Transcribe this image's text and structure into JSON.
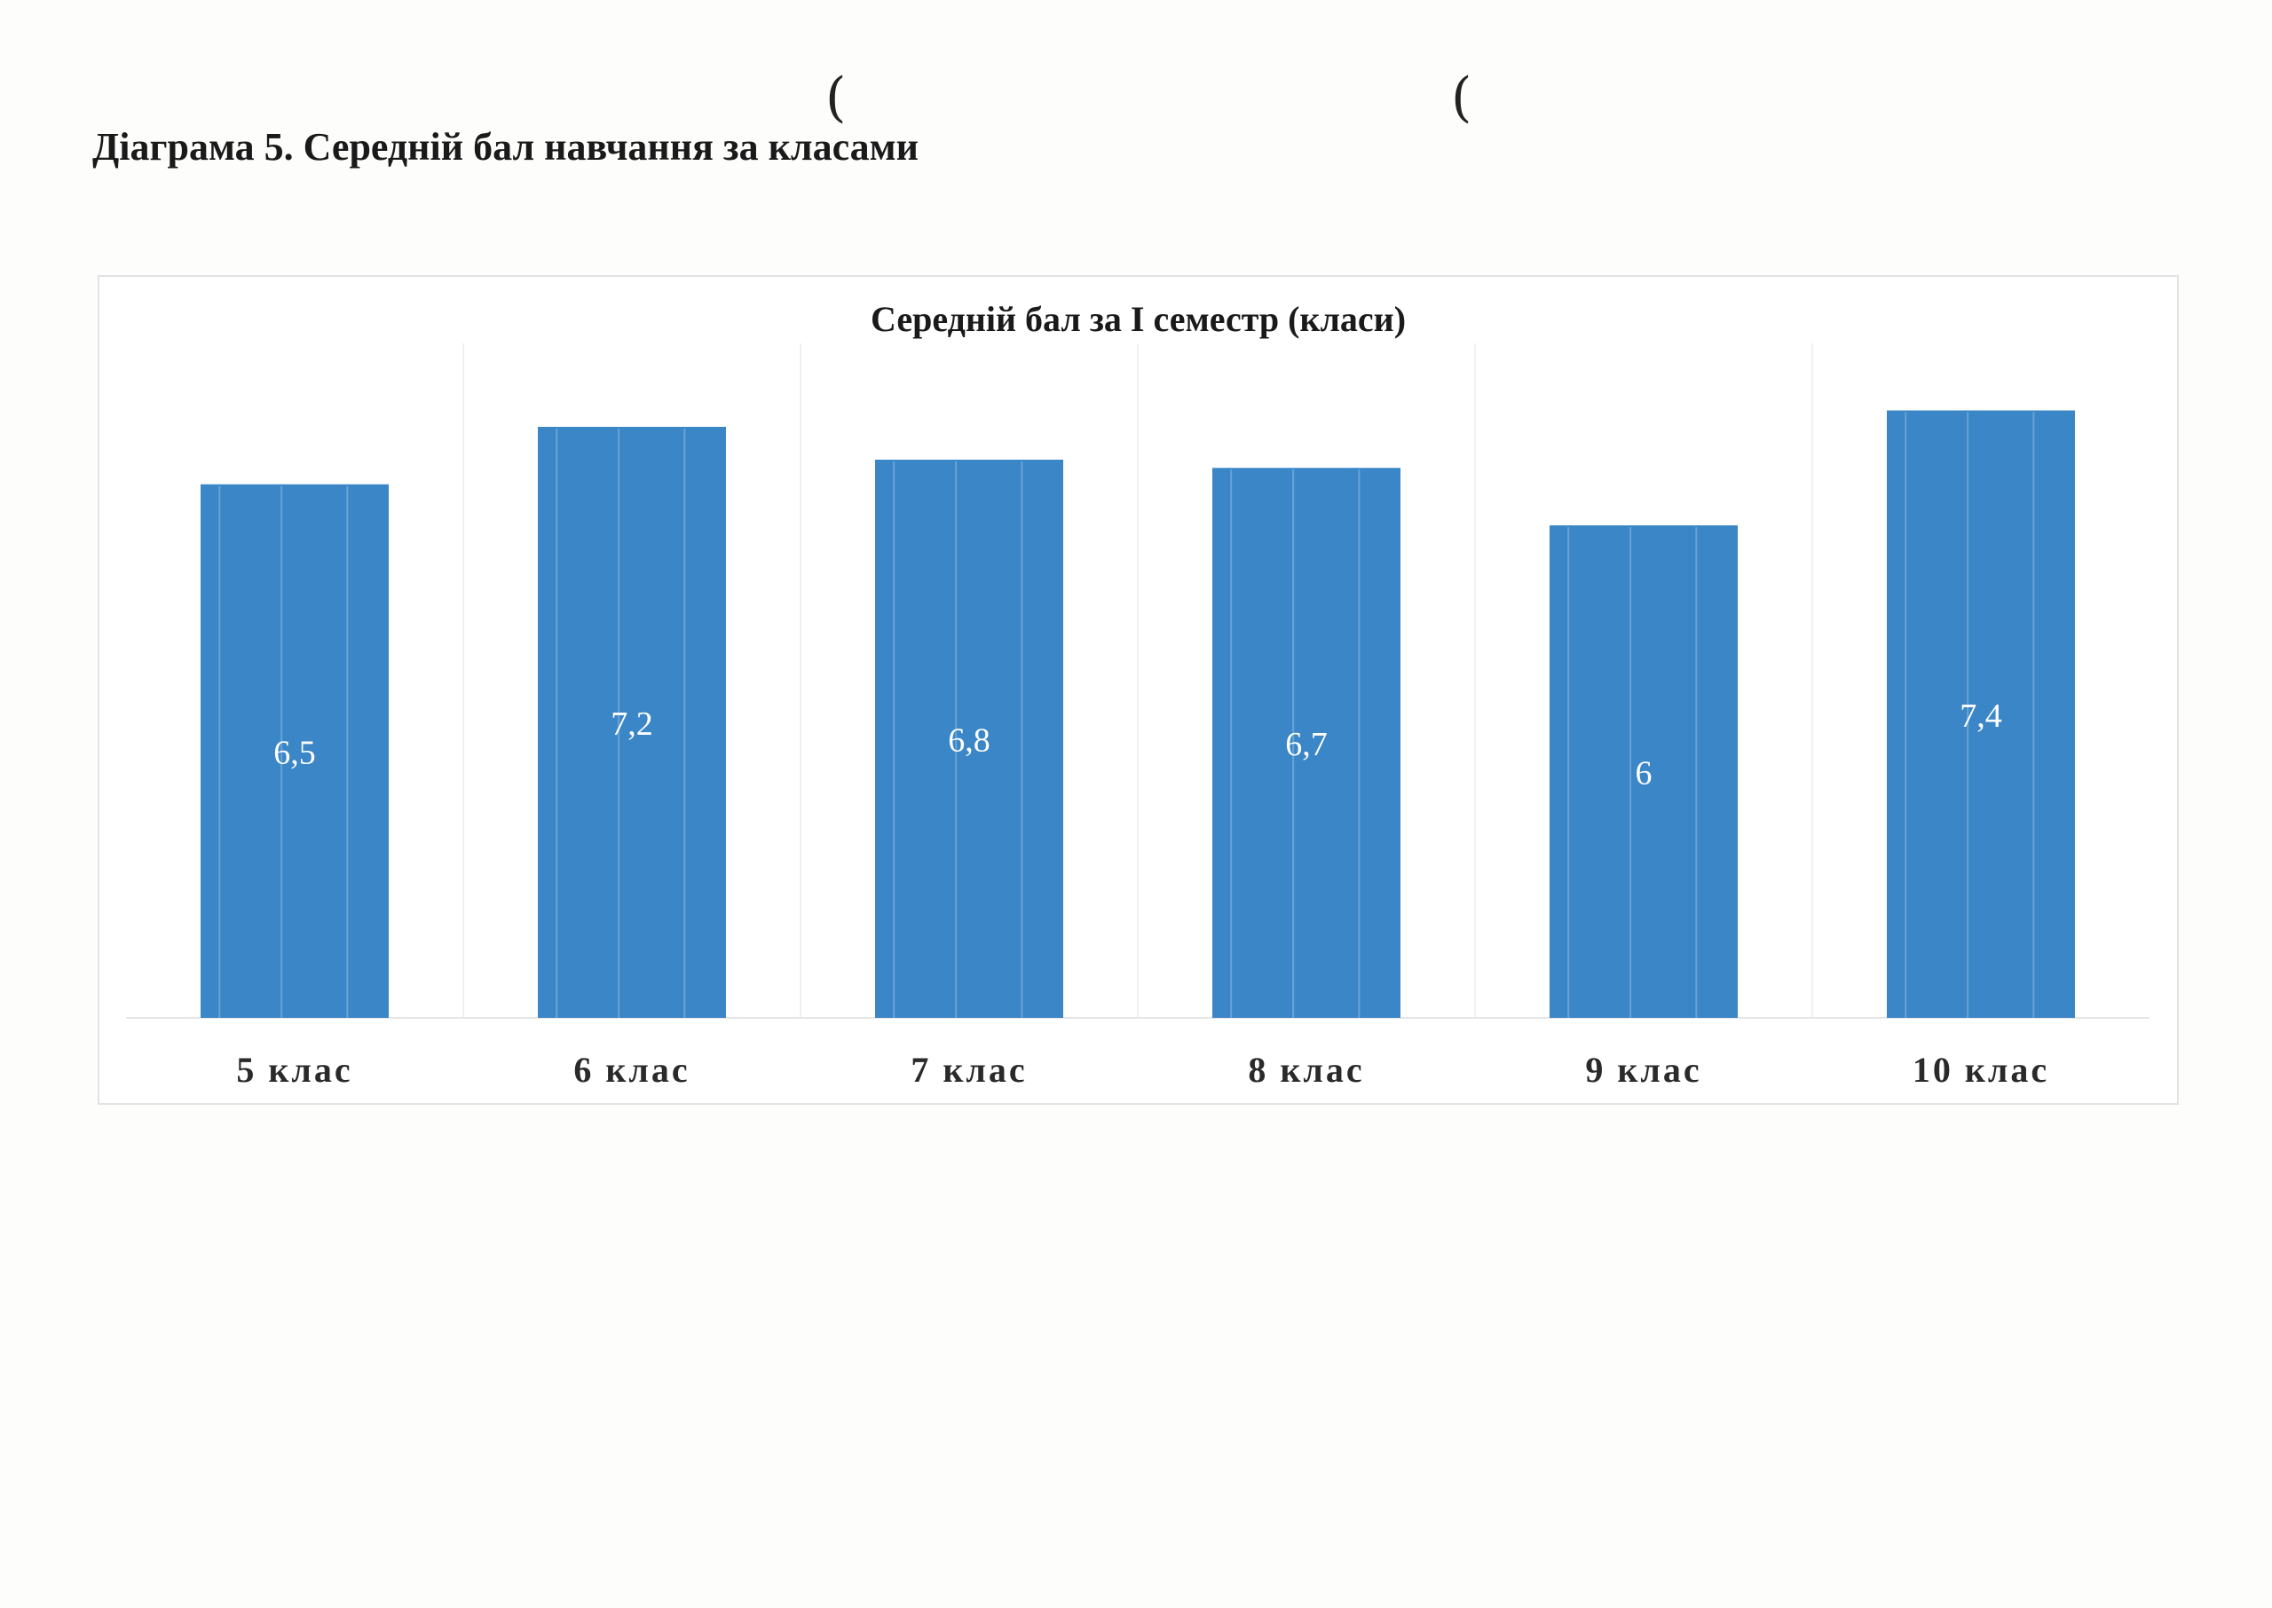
{
  "caption": "Діаграма 5. Середній бал навчання за класами",
  "chart_data": {
    "type": "bar",
    "title": "Середній бал за І семестр (класи)",
    "categories": [
      "5 клас",
      "6 клас",
      "7 клас",
      "8 клас",
      "9 клас",
      "10 клас"
    ],
    "values": [
      6.5,
      7.2,
      6.8,
      6.7,
      6.0,
      7.4
    ],
    "value_labels": [
      "6,5",
      "7,2",
      "6,8",
      "6,7",
      "6",
      "7,4"
    ],
    "xlabel": "",
    "ylabel": "",
    "ylim": [
      0,
      8
    ],
    "grid": false,
    "legend": "none",
    "bar_color": "#3a86c6",
    "label_color": "#ffffff"
  }
}
